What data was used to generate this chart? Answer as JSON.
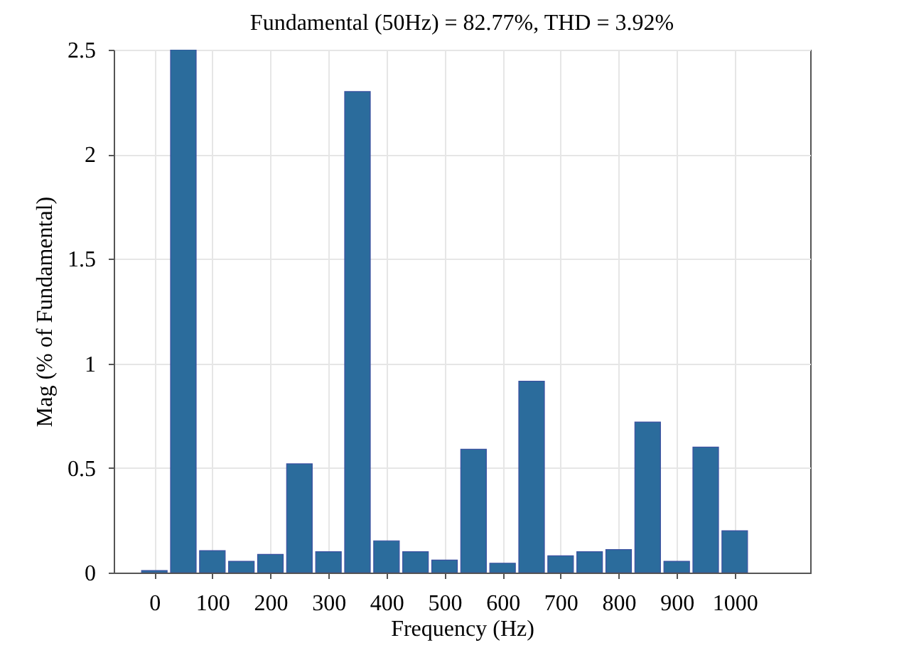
{
  "chart_data": {
    "type": "bar",
    "title": "Fundamental (50Hz) = 82.77%, THD = 3.92%",
    "xlabel": "Frequency (Hz)",
    "ylabel": "Mag (% of Fundamental)",
    "x": [
      0,
      50,
      100,
      150,
      200,
      250,
      300,
      350,
      400,
      450,
      500,
      550,
      600,
      650,
      700,
      750,
      800,
      850,
      900,
      950,
      1000
    ],
    "values": [
      0.01,
      2.5,
      0.105,
      0.054,
      0.087,
      0.52,
      0.1,
      2.3,
      0.152,
      0.1,
      0.06,
      0.59,
      0.045,
      0.915,
      0.08,
      0.1,
      0.11,
      0.72,
      0.054,
      0.6,
      0.2
    ],
    "color": "#2b6c9c",
    "xlim": [
      -70,
      1130
    ],
    "xticks": [
      0,
      100,
      200,
      300,
      400,
      500,
      600,
      700,
      800,
      900,
      1000
    ],
    "ylim": [
      0,
      2.5
    ],
    "yticks": [
      0,
      0.5,
      1,
      1.5,
      2,
      2.5
    ],
    "grid": true
  }
}
